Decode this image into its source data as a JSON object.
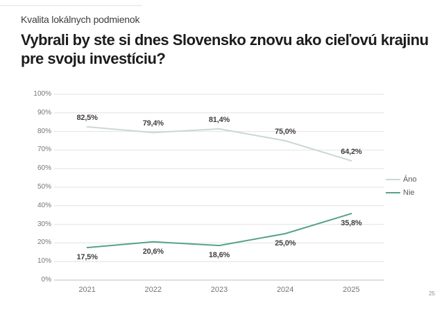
{
  "page": {
    "kicker": "Kvalita lokálnych podmienok",
    "title": "Vybrali by ste si dnes Slovensko znovu ako cieľovú krajinu pre svoju investíciu?",
    "page_number": "25"
  },
  "colors": {
    "ano_line": "#c9d9d1",
    "nie_line": "#55a287",
    "gridline": "#e2e2e2",
    "axis_line": "#bfbfbf",
    "data_label": "#3f3f3f",
    "axis_text": "#757575",
    "legend_text": "#595959"
  },
  "chart_data": {
    "type": "line",
    "title": "Vybrali by ste si dnes Slovensko znovu ako cieľovú krajinu pre svoju investíciu?",
    "categories": [
      "2021",
      "2022",
      "2023",
      "2024",
      "2025"
    ],
    "series": [
      {
        "name": "Áno",
        "values": [
          82.5,
          79.4,
          81.4,
          75.0,
          64.2
        ],
        "labels": [
          "82,5%",
          "79,4%",
          "81,4%",
          "75,0%",
          "64,2%"
        ],
        "color_key": "ano_line",
        "label_position": "above"
      },
      {
        "name": "Nie",
        "values": [
          17.5,
          20.6,
          18.6,
          25.0,
          35.8
        ],
        "labels": [
          "17,5%",
          "20,6%",
          "18,6%",
          "25,0%",
          "35,8%"
        ],
        "color_key": "nie_line",
        "label_position": "below"
      }
    ],
    "y_ticks": [
      "0%",
      "10%",
      "20%",
      "30%",
      "40%",
      "50%",
      "60%",
      "70%",
      "80%",
      "90%",
      "100%"
    ],
    "ylim": [
      0,
      100
    ],
    "xlabel": "",
    "ylabel": "",
    "grid": true,
    "legend_position": "right"
  }
}
